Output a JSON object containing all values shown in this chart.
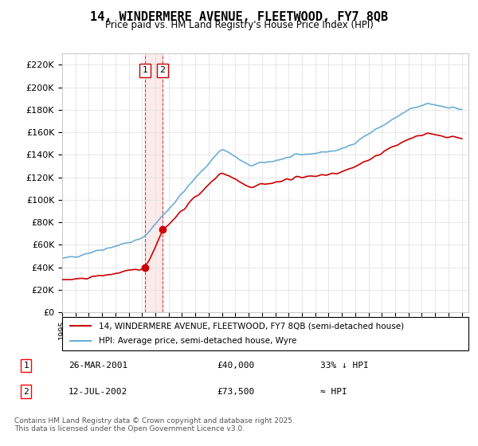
{
  "title": "14, WINDERMERE AVENUE, FLEETWOOD, FY7 8QB",
  "subtitle": "Price paid vs. HM Land Registry's House Price Index (HPI)",
  "legend_line1": "14, WINDERMERE AVENUE, FLEETWOOD, FY7 8QB (semi-detached house)",
  "legend_line2": "HPI: Average price, semi-detached house, Wyre",
  "transaction1_label": "1",
  "transaction1_date": "26-MAR-2001",
  "transaction1_price": "£40,000",
  "transaction1_hpi": "33% ↓ HPI",
  "transaction2_label": "2",
  "transaction2_date": "12-JUL-2002",
  "transaction2_price": "£73,500",
  "transaction2_hpi": "≈ HPI",
  "footnote": "Contains HM Land Registry data © Crown copyright and database right 2025.\nThis data is licensed under the Open Government Licence v3.0.",
  "hpi_color": "#6baed6",
  "price_color": "#cc0000",
  "vline_color": "#cc0000",
  "vline_x1": 2001.23,
  "vline_x2": 2002.54,
  "marker1_x": 2001.23,
  "marker1_y": 40000,
  "marker2_x": 2002.54,
  "marker2_y": 73500,
  "xmin": 1995,
  "xmax": 2025.5,
  "ymin": 0,
  "ymax": 230000,
  "yticks": [
    0,
    20000,
    40000,
    60000,
    80000,
    100000,
    120000,
    140000,
    160000,
    180000,
    200000,
    220000
  ],
  "background_color": "#ffffff",
  "grid_color": "#dddddd"
}
